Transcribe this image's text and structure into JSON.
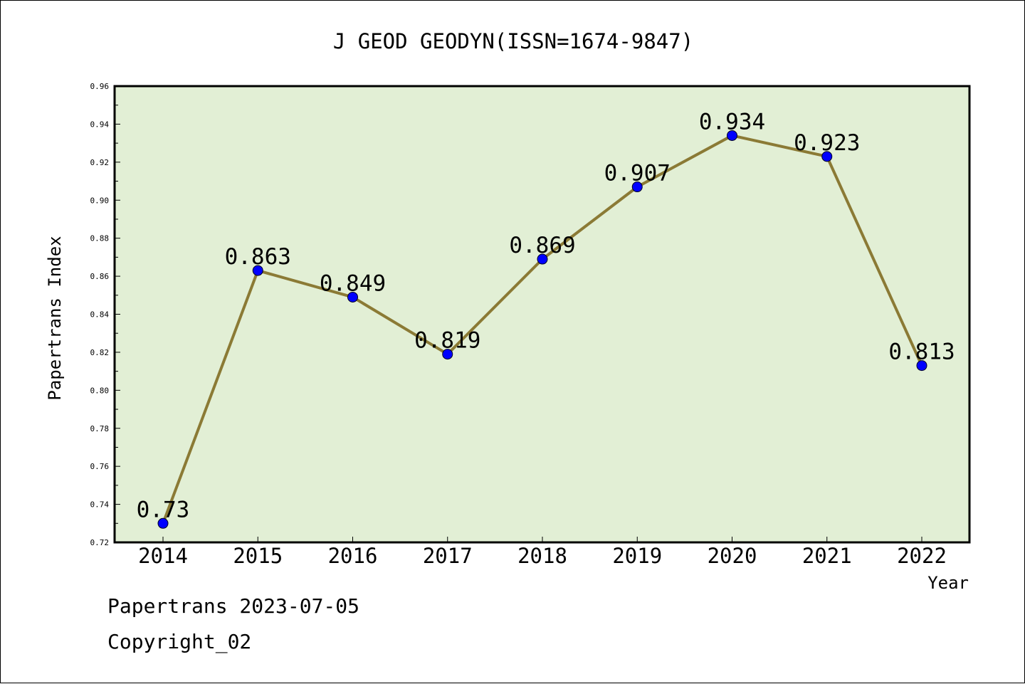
{
  "chart_data": {
    "type": "line",
    "title": "J GEOD GEODYN(ISSN=1674-9847)",
    "xlabel": "Year",
    "ylabel": "Papertrans Index",
    "categories": [
      "2014",
      "2015",
      "2016",
      "2017",
      "2018",
      "2019",
      "2020",
      "2021",
      "2022"
    ],
    "values": [
      0.73,
      0.863,
      0.849,
      0.819,
      0.869,
      0.907,
      0.934,
      0.923,
      0.813
    ],
    "data_labels": [
      "0.73",
      "0.863",
      "0.849",
      "0.819",
      "0.869",
      "0.907",
      "0.934",
      "0.923",
      "0.813"
    ],
    "ylim": [
      0.72,
      0.96
    ],
    "y_ticks": [
      "0.72",
      "0.74",
      "0.76",
      "0.78",
      "0.80",
      "0.82",
      "0.84",
      "0.86",
      "0.88",
      "0.90",
      "0.92",
      "0.94",
      "0.96"
    ],
    "grid": false,
    "legend": "none",
    "colors": {
      "plot_background": "#e2efd5",
      "line": "#8b7a35",
      "marker": "#0000ff"
    }
  },
  "footer": {
    "line1": "Papertrans 2023-07-05",
    "line2": "Copyright_02"
  }
}
